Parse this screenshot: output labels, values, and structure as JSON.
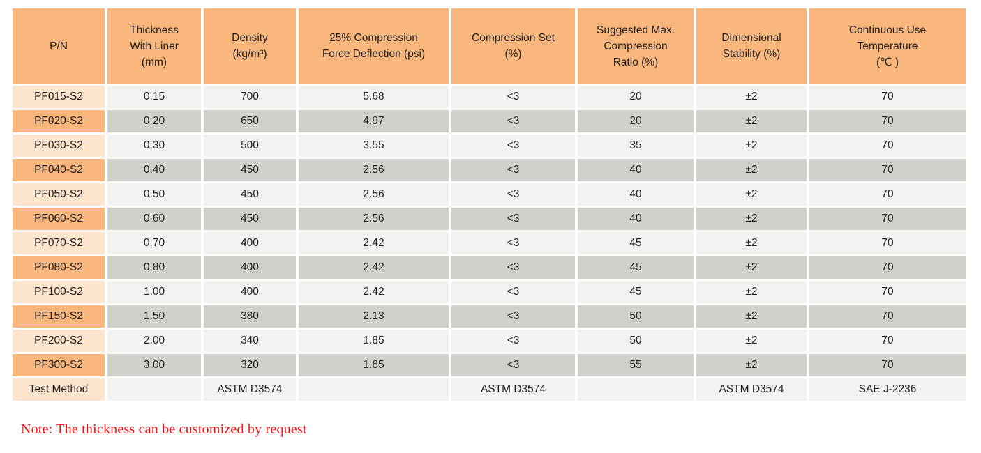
{
  "colors": {
    "header_orange": "#F9B77D",
    "row_orange_light": "#FCE4CD",
    "row_orange_dark": "#F9B77D",
    "cell_gray_light": "#F2F2EF",
    "cell_gray_dark": "#D1D1CB",
    "text": "#1E1E1E",
    "note_red": "#EE1111"
  },
  "table": {
    "columns": [
      {
        "id": "pn",
        "lines": [
          "P/N"
        ]
      },
      {
        "id": "thickness",
        "lines": [
          "Thickness",
          "With Liner",
          "(mm)"
        ]
      },
      {
        "id": "density",
        "lines": [
          "Density",
          "(kg/m³)"
        ]
      },
      {
        "id": "cfd",
        "lines": [
          "25% Compression",
          "Force Deflection (psi)"
        ]
      },
      {
        "id": "compression-set",
        "lines": [
          "Compression Set",
          "(%)"
        ]
      },
      {
        "id": "max-compression-ratio",
        "lines": [
          "Suggested Max.",
          "Compression",
          "Ratio (%)"
        ]
      },
      {
        "id": "dimensional-stability",
        "lines": [
          "Dimensional",
          "Stability (%)"
        ]
      },
      {
        "id": "continuous-use-temp",
        "lines": [
          "Continuous Use",
          "Temperature",
          "(℃ )"
        ]
      }
    ],
    "rows": [
      {
        "cells": [
          "PF015-S2",
          "0.15",
          "700",
          "5.68",
          "<3",
          "20",
          "±2",
          "70"
        ]
      },
      {
        "cells": [
          "PF020-S2",
          "0.20",
          "650",
          "4.97",
          "<3",
          "20",
          "±2",
          "70"
        ]
      },
      {
        "cells": [
          "PF030-S2",
          "0.30",
          "500",
          "3.55",
          "<3",
          "35",
          "±2",
          "70"
        ]
      },
      {
        "cells": [
          "PF040-S2",
          "0.40",
          "450",
          "2.56",
          "<3",
          "40",
          "±2",
          "70"
        ]
      },
      {
        "cells": [
          "PF050-S2",
          "0.50",
          "450",
          "2.56",
          "<3",
          "40",
          "±2",
          "70"
        ]
      },
      {
        "cells": [
          "PF060-S2",
          "0.60",
          "450",
          "2.56",
          "<3",
          "40",
          "±2",
          "70"
        ]
      },
      {
        "cells": [
          "PF070-S2",
          "0.70",
          "400",
          "2.42",
          "<3",
          "45",
          "±2",
          "70"
        ]
      },
      {
        "cells": [
          "PF080-S2",
          "0.80",
          "400",
          "2.42",
          "<3",
          "45",
          "±2",
          "70"
        ]
      },
      {
        "cells": [
          "PF100-S2",
          "1.00",
          "400",
          "2.42",
          "<3",
          "45",
          "±2",
          "70"
        ]
      },
      {
        "cells": [
          "PF150-S2",
          "1.50",
          "380",
          "2.13",
          "<3",
          "50",
          "±2",
          "70"
        ]
      },
      {
        "cells": [
          "PF200-S2",
          "2.00",
          "340",
          "1.85",
          "<3",
          "50",
          "±2",
          "70"
        ]
      },
      {
        "cells": [
          "PF300-S2",
          "3.00",
          "320",
          "1.85",
          "<3",
          "55",
          "±2",
          "70"
        ]
      },
      {
        "cells": [
          "Test Method",
          "",
          "ASTM D3574",
          "",
          "ASTM D3574",
          "",
          "ASTM D3574",
          "SAE J-2236"
        ]
      }
    ]
  },
  "note": {
    "text": "Note: The thickness can be customized by request"
  }
}
